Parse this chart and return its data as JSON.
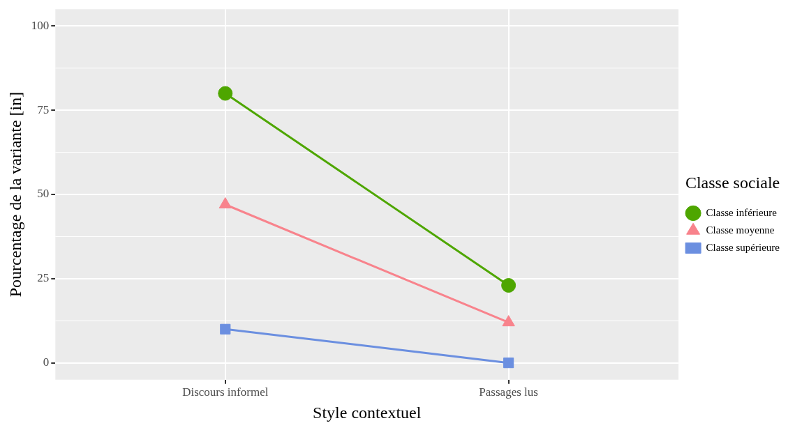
{
  "chart_data": {
    "type": "line",
    "xlabel": "Style contextuel",
    "ylabel": "Pourcentage de la variante [in]",
    "legend_title": "Classe sociale",
    "categories": [
      "Discours informel",
      "Passages lus"
    ],
    "series": [
      {
        "name": "Classe inférieure",
        "color": "#4ea600",
        "values": [
          80,
          23
        ],
        "marker": "circle"
      },
      {
        "name": "Classe moyenne",
        "color": "#f8838c",
        "values": [
          47,
          12
        ],
        "marker": "triangle"
      },
      {
        "name": "Classe supérieure",
        "color": "#6b8fe0",
        "values": [
          10,
          0
        ],
        "marker": "square"
      }
    ],
    "ylim": [
      -5,
      105
    ],
    "yticks": [
      0,
      25,
      50,
      75,
      100
    ],
    "grid": true,
    "legend": "right",
    "line_style": "solid"
  }
}
